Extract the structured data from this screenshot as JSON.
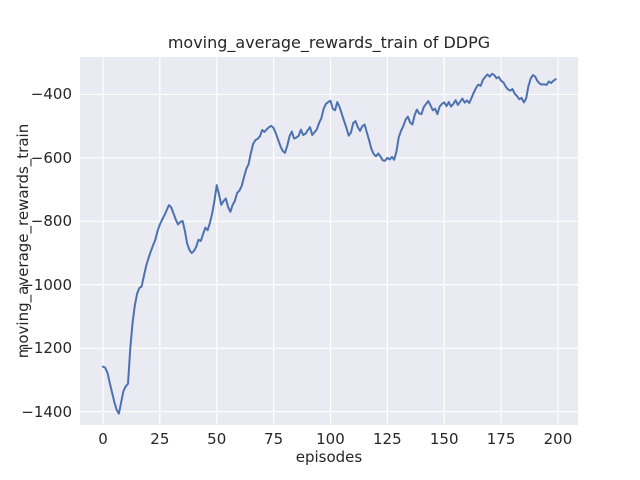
{
  "figure": {
    "background": "#ffffff"
  },
  "chart_data": {
    "type": "line",
    "title": "moving_average_rewards_train of DDPG",
    "xlabel": "episodes",
    "ylabel": "moving_average_rewards_train",
    "series_name": "moving_average_rewards_train",
    "legend": "none",
    "grid": true,
    "x_start": 0,
    "x_step": 1,
    "xlim": [
      -10.1,
      208.8
    ],
    "ylim": [
      -1442,
      -282
    ],
    "xticks": [
      0,
      25,
      50,
      75,
      100,
      125,
      150,
      175,
      200
    ],
    "yticks": [
      -1400,
      -1200,
      -1000,
      -800,
      -600,
      -400
    ],
    "line_color": "#4c72b0",
    "line_width": 2,
    "axes_background": "#eaeaf2",
    "grid_color": "#ffffff",
    "text_color": "#262626",
    "values": [
      -1258,
      -1262,
      -1278,
      -1310,
      -1340,
      -1370,
      -1394,
      -1406,
      -1370,
      -1335,
      -1320,
      -1312,
      -1200,
      -1120,
      -1065,
      -1028,
      -1010,
      -1005,
      -972,
      -940,
      -916,
      -895,
      -876,
      -858,
      -830,
      -810,
      -795,
      -781,
      -765,
      -749,
      -756,
      -775,
      -795,
      -810,
      -802,
      -799,
      -830,
      -870,
      -890,
      -900,
      -893,
      -880,
      -858,
      -862,
      -840,
      -820,
      -828,
      -805,
      -775,
      -735,
      -686,
      -715,
      -748,
      -736,
      -728,
      -755,
      -770,
      -748,
      -735,
      -710,
      -703,
      -688,
      -660,
      -635,
      -620,
      -585,
      -556,
      -544,
      -540,
      -532,
      -512,
      -518,
      -510,
      -503,
      -499,
      -506,
      -523,
      -543,
      -563,
      -578,
      -584,
      -562,
      -532,
      -517,
      -539,
      -536,
      -531,
      -511,
      -528,
      -524,
      -513,
      -503,
      -528,
      -519,
      -510,
      -490,
      -475,
      -445,
      -430,
      -424,
      -420,
      -445,
      -450,
      -424,
      -440,
      -462,
      -484,
      -505,
      -530,
      -520,
      -490,
      -484,
      -503,
      -515,
      -500,
      -495,
      -520,
      -545,
      -572,
      -588,
      -595,
      -586,
      -596,
      -608,
      -609,
      -600,
      -605,
      -597,
      -606,
      -580,
      -535,
      -515,
      -500,
      -480,
      -470,
      -488,
      -495,
      -465,
      -448,
      -460,
      -462,
      -440,
      -430,
      -421,
      -435,
      -450,
      -445,
      -462,
      -438,
      -430,
      -425,
      -437,
      -424,
      -438,
      -430,
      -418,
      -433,
      -423,
      -413,
      -426,
      -419,
      -427,
      -411,
      -394,
      -379,
      -369,
      -373,
      -354,
      -345,
      -337,
      -344,
      -335,
      -339,
      -349,
      -345,
      -357,
      -362,
      -375,
      -384,
      -388,
      -383,
      -398,
      -405,
      -415,
      -411,
      -425,
      -413,
      -374,
      -350,
      -339,
      -344,
      -358,
      -366,
      -369,
      -368,
      -370,
      -359,
      -364,
      -357,
      -352
    ]
  }
}
